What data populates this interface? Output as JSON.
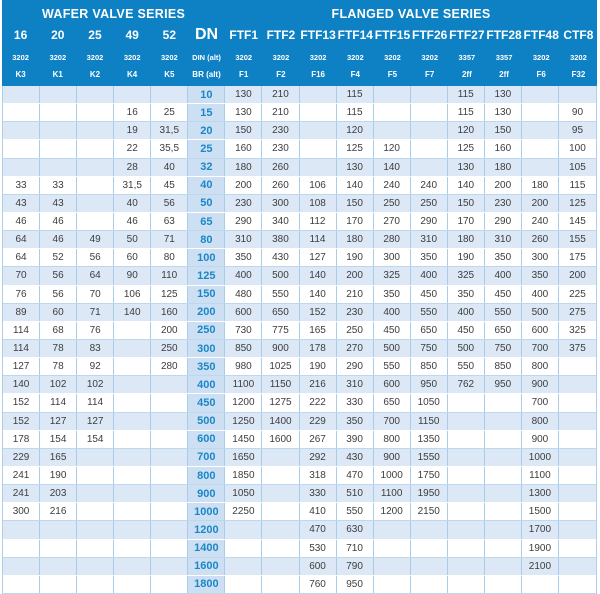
{
  "header": {
    "wafer_title": "WAFER VALVE SERIES",
    "flanged_title": "FLANGED VALVE SERIES",
    "columns": [
      {
        "name": "16",
        "std": "3202",
        "code": "K3"
      },
      {
        "name": "20",
        "std": "3202",
        "code": "K1"
      },
      {
        "name": "25",
        "std": "3202",
        "code": "K2"
      },
      {
        "name": "49",
        "std": "3202",
        "code": "K4"
      },
      {
        "name": "52",
        "std": "3202",
        "code": "K5"
      },
      {
        "name": "DN",
        "std": "DIN (alt)",
        "code": "BR (alt)"
      },
      {
        "name": "FTF1",
        "std": "3202",
        "code": "F1"
      },
      {
        "name": "FTF2",
        "std": "3202",
        "code": "F2"
      },
      {
        "name": "FTF13",
        "std": "3202",
        "code": "F16"
      },
      {
        "name": "FTF14",
        "std": "3202",
        "code": "F4"
      },
      {
        "name": "FTF15",
        "std": "3202",
        "code": "F5"
      },
      {
        "name": "FTF26",
        "std": "3202",
        "code": "F7"
      },
      {
        "name": "FTF27",
        "std": "3357",
        "code": "2ff"
      },
      {
        "name": "FTF28",
        "std": "3357",
        "code": "2ff"
      },
      {
        "name": "FTF48",
        "std": "3202",
        "code": "F6"
      },
      {
        "name": "CTF8",
        "std": "3202",
        "code": "F32"
      }
    ]
  },
  "rows": [
    [
      "",
      "",
      "",
      "",
      "",
      "10",
      "130",
      "210",
      "",
      "115",
      "",
      "",
      "115",
      "130",
      "",
      ""
    ],
    [
      "",
      "",
      "",
      "16",
      "25",
      "15",
      "130",
      "210",
      "",
      "115",
      "",
      "",
      "115",
      "130",
      "",
      "90"
    ],
    [
      "",
      "",
      "",
      "19",
      "31,5",
      "20",
      "150",
      "230",
      "",
      "120",
      "",
      "",
      "120",
      "150",
      "",
      "95"
    ],
    [
      "",
      "",
      "",
      "22",
      "35,5",
      "25",
      "160",
      "230",
      "",
      "125",
      "120",
      "",
      "125",
      "160",
      "",
      "100"
    ],
    [
      "",
      "",
      "",
      "28",
      "40",
      "32",
      "180",
      "260",
      "",
      "130",
      "140",
      "",
      "130",
      "180",
      "",
      "105"
    ],
    [
      "33",
      "33",
      "",
      "31,5",
      "45",
      "40",
      "200",
      "260",
      "106",
      "140",
      "240",
      "240",
      "140",
      "200",
      "180",
      "115"
    ],
    [
      "43",
      "43",
      "",
      "40",
      "56",
      "50",
      "230",
      "300",
      "108",
      "150",
      "250",
      "250",
      "150",
      "230",
      "200",
      "125"
    ],
    [
      "46",
      "46",
      "",
      "46",
      "63",
      "65",
      "290",
      "340",
      "112",
      "170",
      "270",
      "290",
      "170",
      "290",
      "240",
      "145"
    ],
    [
      "64",
      "46",
      "49",
      "50",
      "71",
      "80",
      "310",
      "380",
      "114",
      "180",
      "280",
      "310",
      "180",
      "310",
      "260",
      "155"
    ],
    [
      "64",
      "52",
      "56",
      "60",
      "80",
      "100",
      "350",
      "430",
      "127",
      "190",
      "300",
      "350",
      "190",
      "350",
      "300",
      "175"
    ],
    [
      "70",
      "56",
      "64",
      "90",
      "110",
      "125",
      "400",
      "500",
      "140",
      "200",
      "325",
      "400",
      "325",
      "400",
      "350",
      "200"
    ],
    [
      "76",
      "56",
      "70",
      "106",
      "125",
      "150",
      "480",
      "550",
      "140",
      "210",
      "350",
      "450",
      "350",
      "450",
      "400",
      "225"
    ],
    [
      "89",
      "60",
      "71",
      "140",
      "160",
      "200",
      "600",
      "650",
      "152",
      "230",
      "400",
      "550",
      "400",
      "550",
      "500",
      "275"
    ],
    [
      "114",
      "68",
      "76",
      "",
      "200",
      "250",
      "730",
      "775",
      "165",
      "250",
      "450",
      "650",
      "450",
      "650",
      "600",
      "325"
    ],
    [
      "114",
      "78",
      "83",
      "",
      "250",
      "300",
      "850",
      "900",
      "178",
      "270",
      "500",
      "750",
      "500",
      "750",
      "700",
      "375"
    ],
    [
      "127",
      "78",
      "92",
      "",
      "280",
      "350",
      "980",
      "1025",
      "190",
      "290",
      "550",
      "850",
      "550",
      "850",
      "800",
      ""
    ],
    [
      "140",
      "102",
      "102",
      "",
      "",
      "400",
      "1100",
      "1150",
      "216",
      "310",
      "600",
      "950",
      "762",
      "950",
      "900",
      ""
    ],
    [
      "152",
      "114",
      "114",
      "",
      "",
      "450",
      "1200",
      "1275",
      "222",
      "330",
      "650",
      "1050",
      "",
      "",
      "700",
      ""
    ],
    [
      "152",
      "127",
      "127",
      "",
      "",
      "500",
      "1250",
      "1400",
      "229",
      "350",
      "700",
      "1150",
      "",
      "",
      "800",
      ""
    ],
    [
      "178",
      "154",
      "154",
      "",
      "",
      "600",
      "1450",
      "1600",
      "267",
      "390",
      "800",
      "1350",
      "",
      "",
      "900",
      ""
    ],
    [
      "229",
      "165",
      "",
      "",
      "",
      "700",
      "1650",
      "",
      "292",
      "430",
      "900",
      "1550",
      "",
      "",
      "1000",
      ""
    ],
    [
      "241",
      "190",
      "",
      "",
      "",
      "800",
      "1850",
      "",
      "318",
      "470",
      "1000",
      "1750",
      "",
      "",
      "1100",
      ""
    ],
    [
      "241",
      "203",
      "",
      "",
      "",
      "900",
      "1050",
      "",
      "330",
      "510",
      "1100",
      "1950",
      "",
      "",
      "1300",
      ""
    ],
    [
      "300",
      "216",
      "",
      "",
      "",
      "1000",
      "2250",
      "",
      "410",
      "550",
      "1200",
      "2150",
      "",
      "",
      "1500",
      ""
    ],
    [
      "",
      "",
      "",
      "",
      "",
      "1200",
      "",
      "",
      "470",
      "630",
      "",
      "",
      "",
      "",
      "1700",
      ""
    ],
    [
      "",
      "",
      "",
      "",
      "",
      "1400",
      "",
      "",
      "530",
      "710",
      "",
      "",
      "",
      "",
      "1900",
      ""
    ],
    [
      "",
      "",
      "",
      "",
      "",
      "1600",
      "",
      "",
      "600",
      "790",
      "",
      "",
      "",
      "",
      "2100",
      ""
    ],
    [
      "",
      "",
      "",
      "",
      "",
      "1800",
      "",
      "",
      "760",
      "950",
      "",
      "",
      "",
      "",
      "",
      ""
    ]
  ],
  "colors": {
    "header_blue": "#0e81c4",
    "tinted_row": "#dce8f6",
    "dn_cell_bg": "#cde0f3",
    "dn_text": "#1b87c6",
    "grid_line": "#a9cde8",
    "data_text": "#3d3d3d"
  }
}
